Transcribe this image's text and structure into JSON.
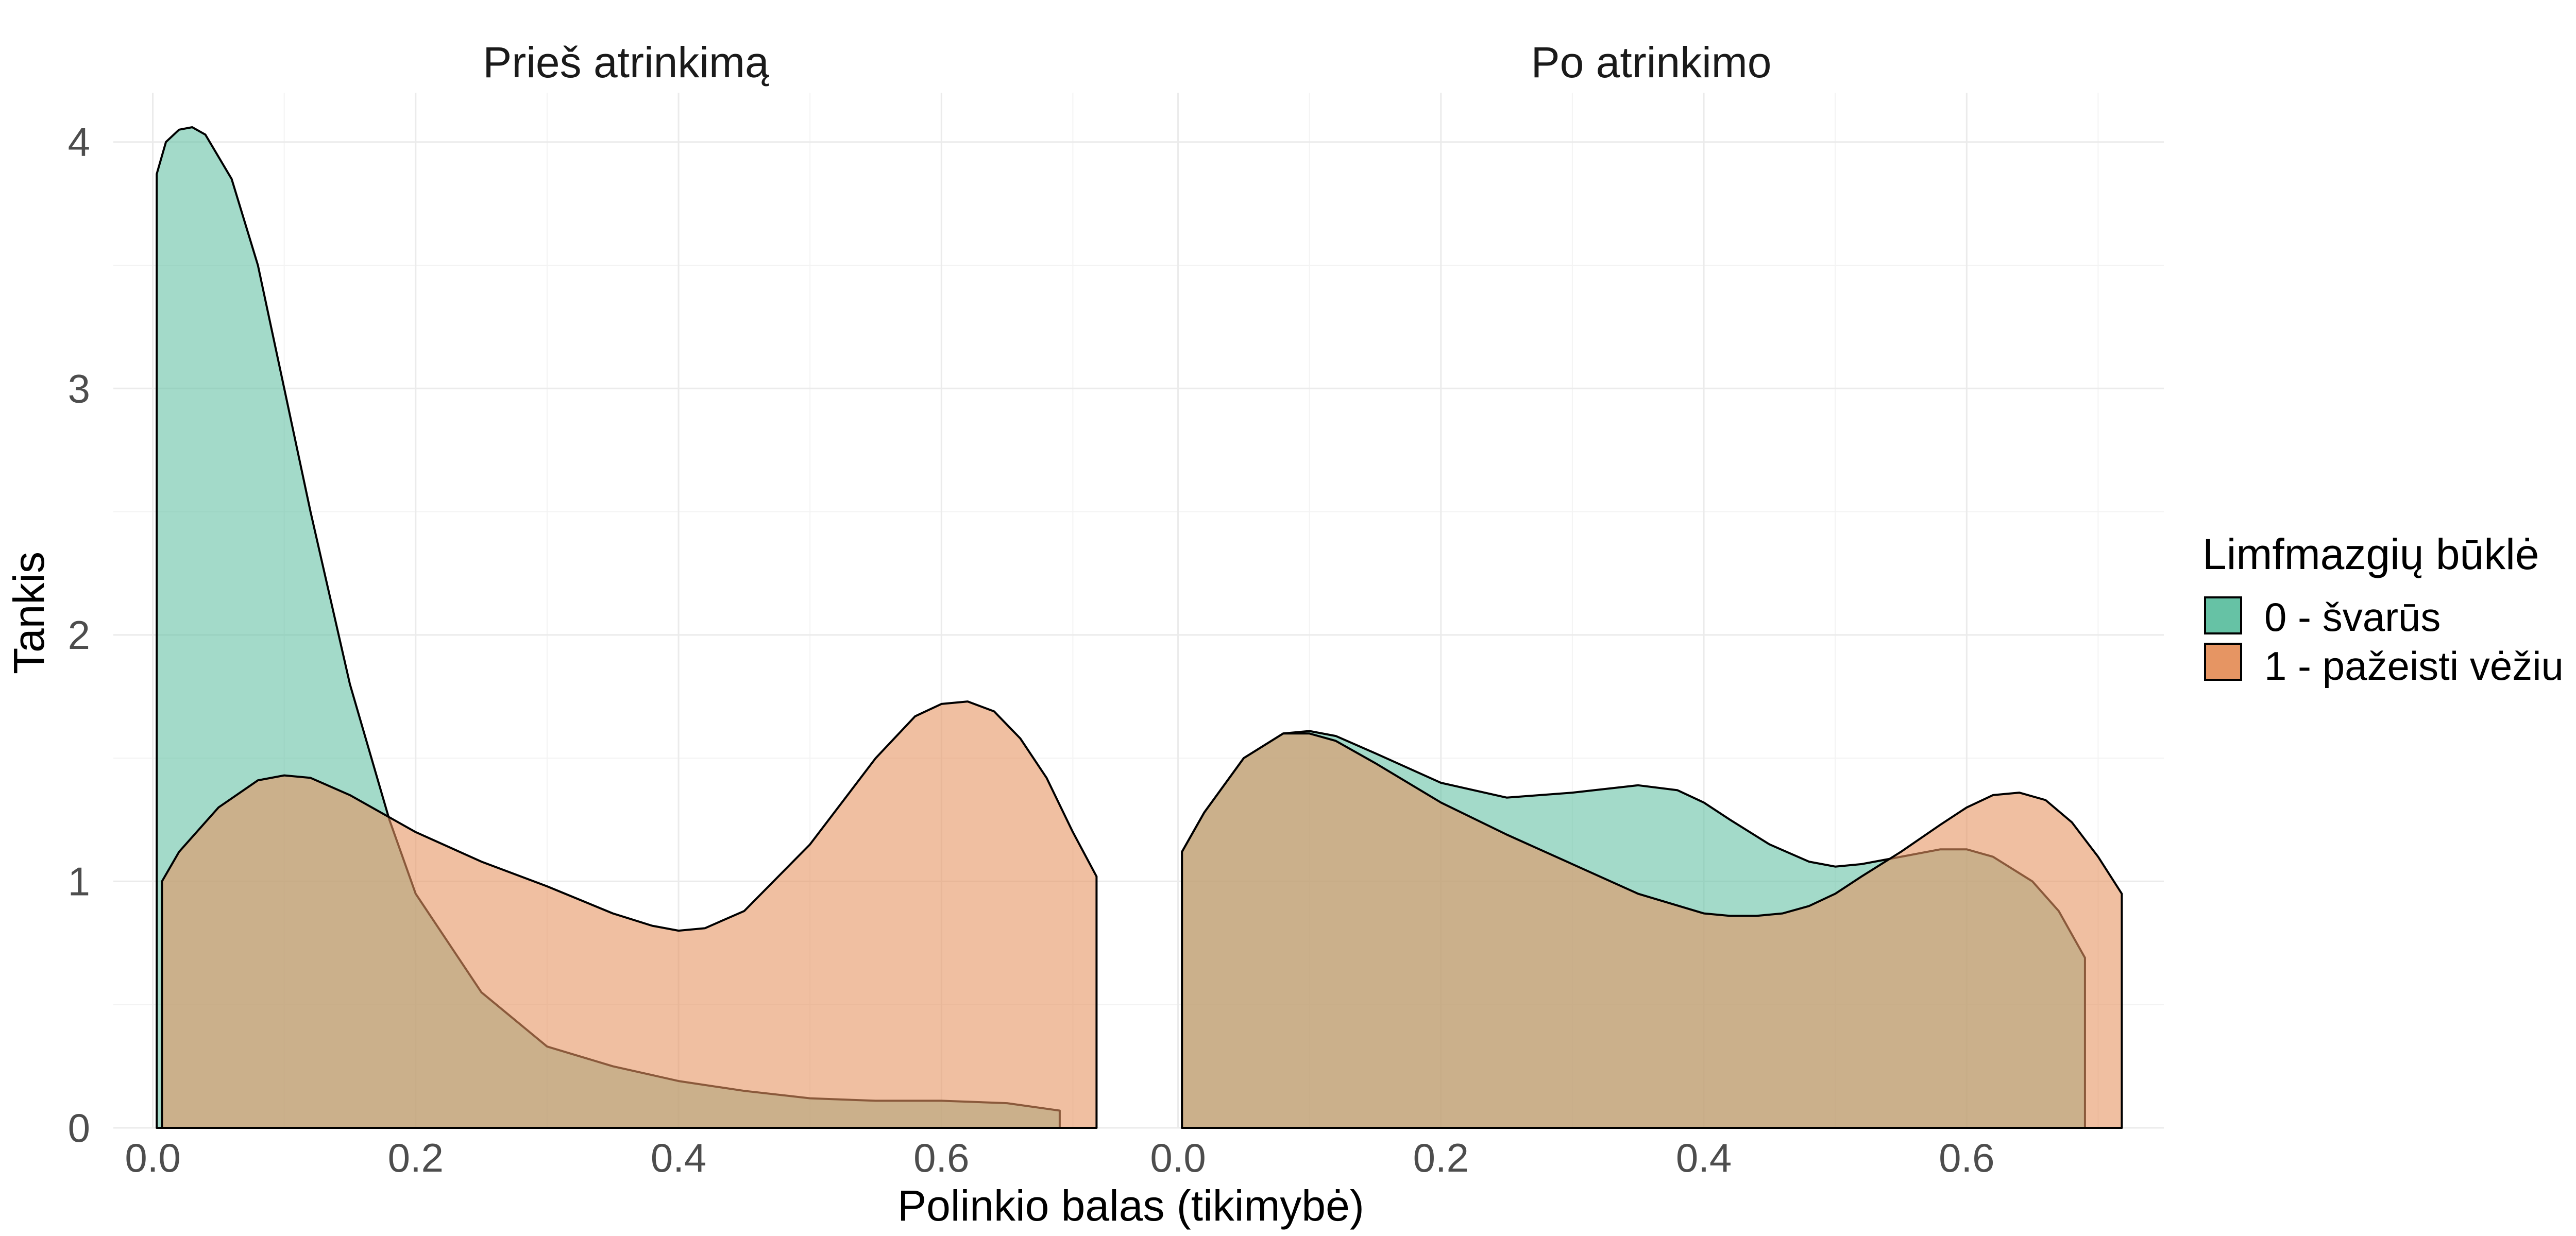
{
  "colors": {
    "series0": "#66C2A5",
    "series1": "#E69563",
    "grid": "#EBEBEB",
    "tick_text": "#4D4D4D"
  },
  "chart_data": {
    "type": "area",
    "xlabel": "Polinkio balas (tikimybė)",
    "ylabel": "Tankis",
    "xlim": [
      -0.03,
      0.75
    ],
    "ylim": [
      0,
      4.2
    ],
    "x_ticks": [
      "0.0",
      "0.2",
      "0.4",
      "0.6"
    ],
    "y_ticks": [
      "0",
      "1",
      "2",
      "3",
      "4"
    ],
    "grid": true,
    "legend": {
      "title": "Limfmazgių būklė",
      "position": "right",
      "entries": [
        "0 - švarūs",
        "1 - pažeisti vėžiu"
      ]
    },
    "fill_alpha": 0.6,
    "panels": [
      {
        "title": "Prieš atrinkimą",
        "series": [
          {
            "name": "0 - švarūs",
            "x": [
              0.003,
              0.01,
              0.02,
              0.03,
              0.04,
              0.06,
              0.08,
              0.1,
              0.12,
              0.15,
              0.18,
              0.2,
              0.25,
              0.3,
              0.35,
              0.4,
              0.45,
              0.5,
              0.55,
              0.6,
              0.65,
              0.69
            ],
            "y": [
              3.87,
              4.0,
              4.05,
              4.06,
              4.03,
              3.85,
              3.5,
              3.0,
              2.5,
              1.8,
              1.25,
              0.95,
              0.55,
              0.33,
              0.25,
              0.19,
              0.15,
              0.12,
              0.11,
              0.11,
              0.1,
              0.07
            ]
          },
          {
            "name": "1 - pažeisti vėžiu",
            "x": [
              0.007,
              0.02,
              0.05,
              0.08,
              0.1,
              0.12,
              0.15,
              0.18,
              0.2,
              0.25,
              0.3,
              0.35,
              0.38,
              0.4,
              0.42,
              0.45,
              0.5,
              0.55,
              0.58,
              0.6,
              0.62,
              0.64,
              0.66,
              0.68,
              0.7,
              0.718
            ],
            "y": [
              1.0,
              1.12,
              1.3,
              1.41,
              1.43,
              1.42,
              1.35,
              1.26,
              1.2,
              1.08,
              0.98,
              0.87,
              0.82,
              0.8,
              0.81,
              0.88,
              1.15,
              1.5,
              1.67,
              1.72,
              1.73,
              1.69,
              1.58,
              1.42,
              1.2,
              1.02
            ]
          }
        ]
      },
      {
        "title": "Po atrinkimo",
        "series": [
          {
            "name": "0 - švarūs",
            "x": [
              0.003,
              0.02,
              0.05,
              0.08,
              0.1,
              0.12,
              0.15,
              0.2,
              0.25,
              0.3,
              0.35,
              0.38,
              0.4,
              0.42,
              0.45,
              0.48,
              0.5,
              0.52,
              0.55,
              0.58,
              0.6,
              0.62,
              0.65,
              0.67,
              0.69
            ],
            "y": [
              1.12,
              1.28,
              1.5,
              1.6,
              1.61,
              1.59,
              1.52,
              1.4,
              1.34,
              1.36,
              1.39,
              1.37,
              1.32,
              1.25,
              1.15,
              1.08,
              1.06,
              1.07,
              1.1,
              1.13,
              1.13,
              1.1,
              1.0,
              0.88,
              0.69
            ]
          },
          {
            "name": "1 - pažeisti vėžiu",
            "x": [
              0.003,
              0.02,
              0.05,
              0.08,
              0.1,
              0.12,
              0.15,
              0.2,
              0.25,
              0.3,
              0.35,
              0.4,
              0.42,
              0.44,
              0.46,
              0.48,
              0.5,
              0.52,
              0.55,
              0.58,
              0.6,
              0.62,
              0.64,
              0.66,
              0.68,
              0.7,
              0.718
            ],
            "y": [
              1.12,
              1.28,
              1.5,
              1.6,
              1.6,
              1.57,
              1.48,
              1.32,
              1.19,
              1.07,
              0.95,
              0.87,
              0.86,
              0.86,
              0.87,
              0.9,
              0.95,
              1.02,
              1.12,
              1.23,
              1.3,
              1.35,
              1.36,
              1.33,
              1.24,
              1.1,
              0.95
            ]
          }
        ]
      }
    ]
  }
}
